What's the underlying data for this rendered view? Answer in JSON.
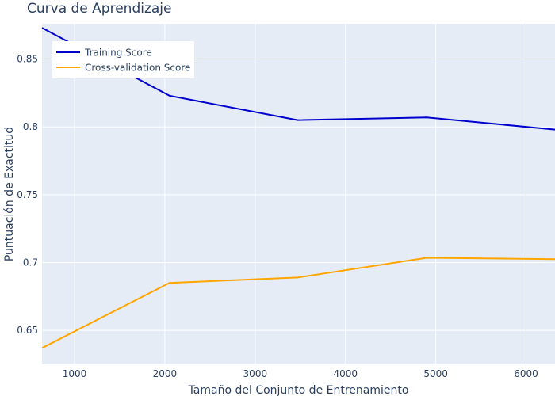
{
  "chart_data": {
    "type": "line",
    "title": "Curva de Aprendizaje",
    "xlabel": "Tamaño del Conjunto de Entrenamiento",
    "ylabel": "Puntuación de Exactitud",
    "xlim": [
      640,
      6320
    ],
    "ylim": [
      0.625,
      0.876
    ],
    "x_ticks": [
      1000,
      2000,
      3000,
      4000,
      5000,
      6000
    ],
    "x_tick_labels": [
      "1000",
      "2000",
      "3000",
      "4000",
      "5000",
      "6000"
    ],
    "y_ticks": [
      0.65,
      0.7,
      0.75,
      0.8,
      0.85
    ],
    "y_tick_labels": [
      "0.65",
      "0.7",
      "0.75",
      "0.8",
      "0.85"
    ],
    "grid": true,
    "legend_position": "top-left",
    "series": [
      {
        "name": "Training Score",
        "color": "#0000cc",
        "x": [
          640,
          2050,
          3470,
          4900,
          6320
        ],
        "y": [
          0.873,
          0.823,
          0.805,
          0.807,
          0.798
        ]
      },
      {
        "name": "Cross-validation Score",
        "color": "#ffa500",
        "x": [
          640,
          2050,
          3470,
          4900,
          6320
        ],
        "y": [
          0.637,
          0.685,
          0.689,
          0.7035,
          0.7025
        ]
      }
    ]
  }
}
